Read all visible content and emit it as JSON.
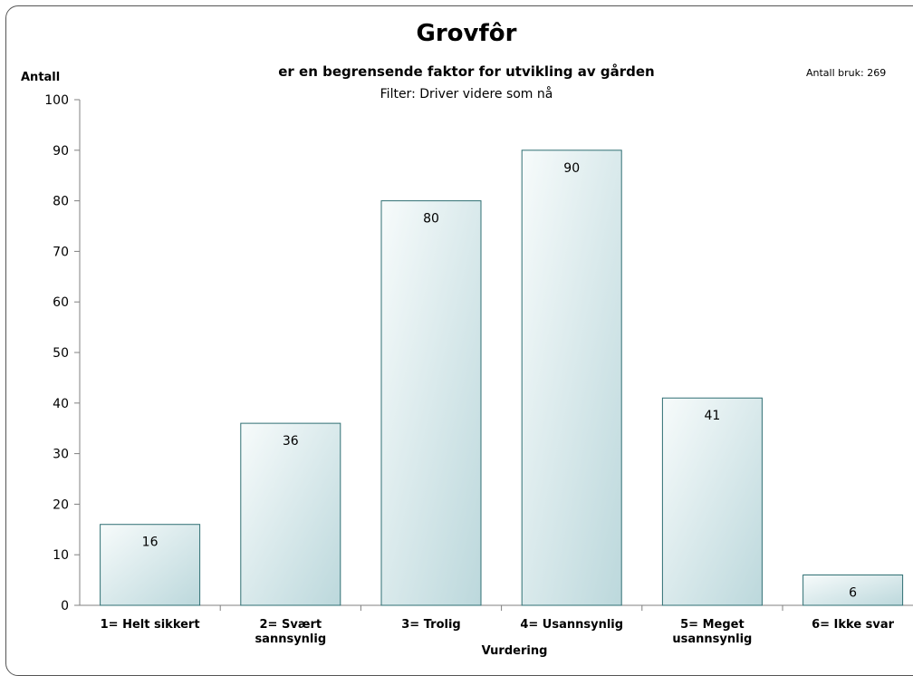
{
  "chart_data": {
    "type": "bar",
    "title": "Grovfôr",
    "subtitle": "er en begrensende faktor for utvikling av gården",
    "filter": "Filter: Driver videre som  nå",
    "ylabel": "Antall",
    "xlabel": "Vurdering",
    "note": "Antall bruk: 269",
    "ylim": [
      0,
      100
    ],
    "yticks": [
      0,
      10,
      20,
      30,
      40,
      50,
      60,
      70,
      80,
      90,
      100
    ],
    "categories": [
      [
        "1= Helt sikkert"
      ],
      [
        "2= Svært",
        "sannsynlig"
      ],
      [
        "3= Trolig"
      ],
      [
        "4= Usannsynlig"
      ],
      [
        "5= Meget",
        "usannsynlig"
      ],
      [
        "6= Ikke svar"
      ]
    ],
    "values": [
      16,
      36,
      80,
      90,
      41,
      6
    ],
    "grid": false,
    "bar_color": "#c9e0e4",
    "bar_edge": "#2f6f73"
  }
}
